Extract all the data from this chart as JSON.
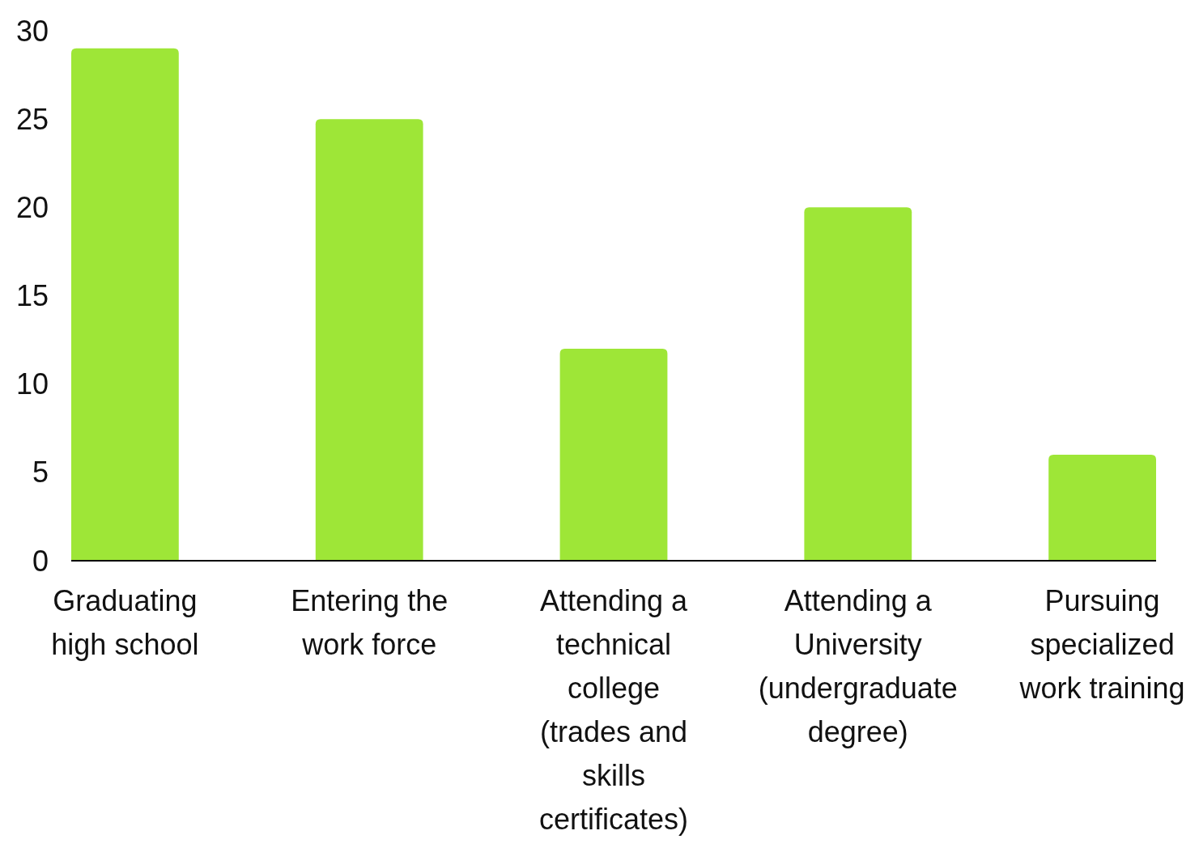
{
  "chart_data": {
    "type": "bar",
    "categories": [
      "Graduating high school",
      "Entering the work force",
      "Attending a technical college (trades and skills certificates)",
      "Attending a University (undergraduate degree)",
      "Pursuing specialized work training"
    ],
    "values": [
      29,
      25,
      12,
      20,
      6
    ],
    "color": "#9ee637",
    "ylim": [
      0,
      30
    ],
    "yticks": [
      0,
      5,
      10,
      15,
      20,
      25,
      30
    ],
    "grid": false
  }
}
